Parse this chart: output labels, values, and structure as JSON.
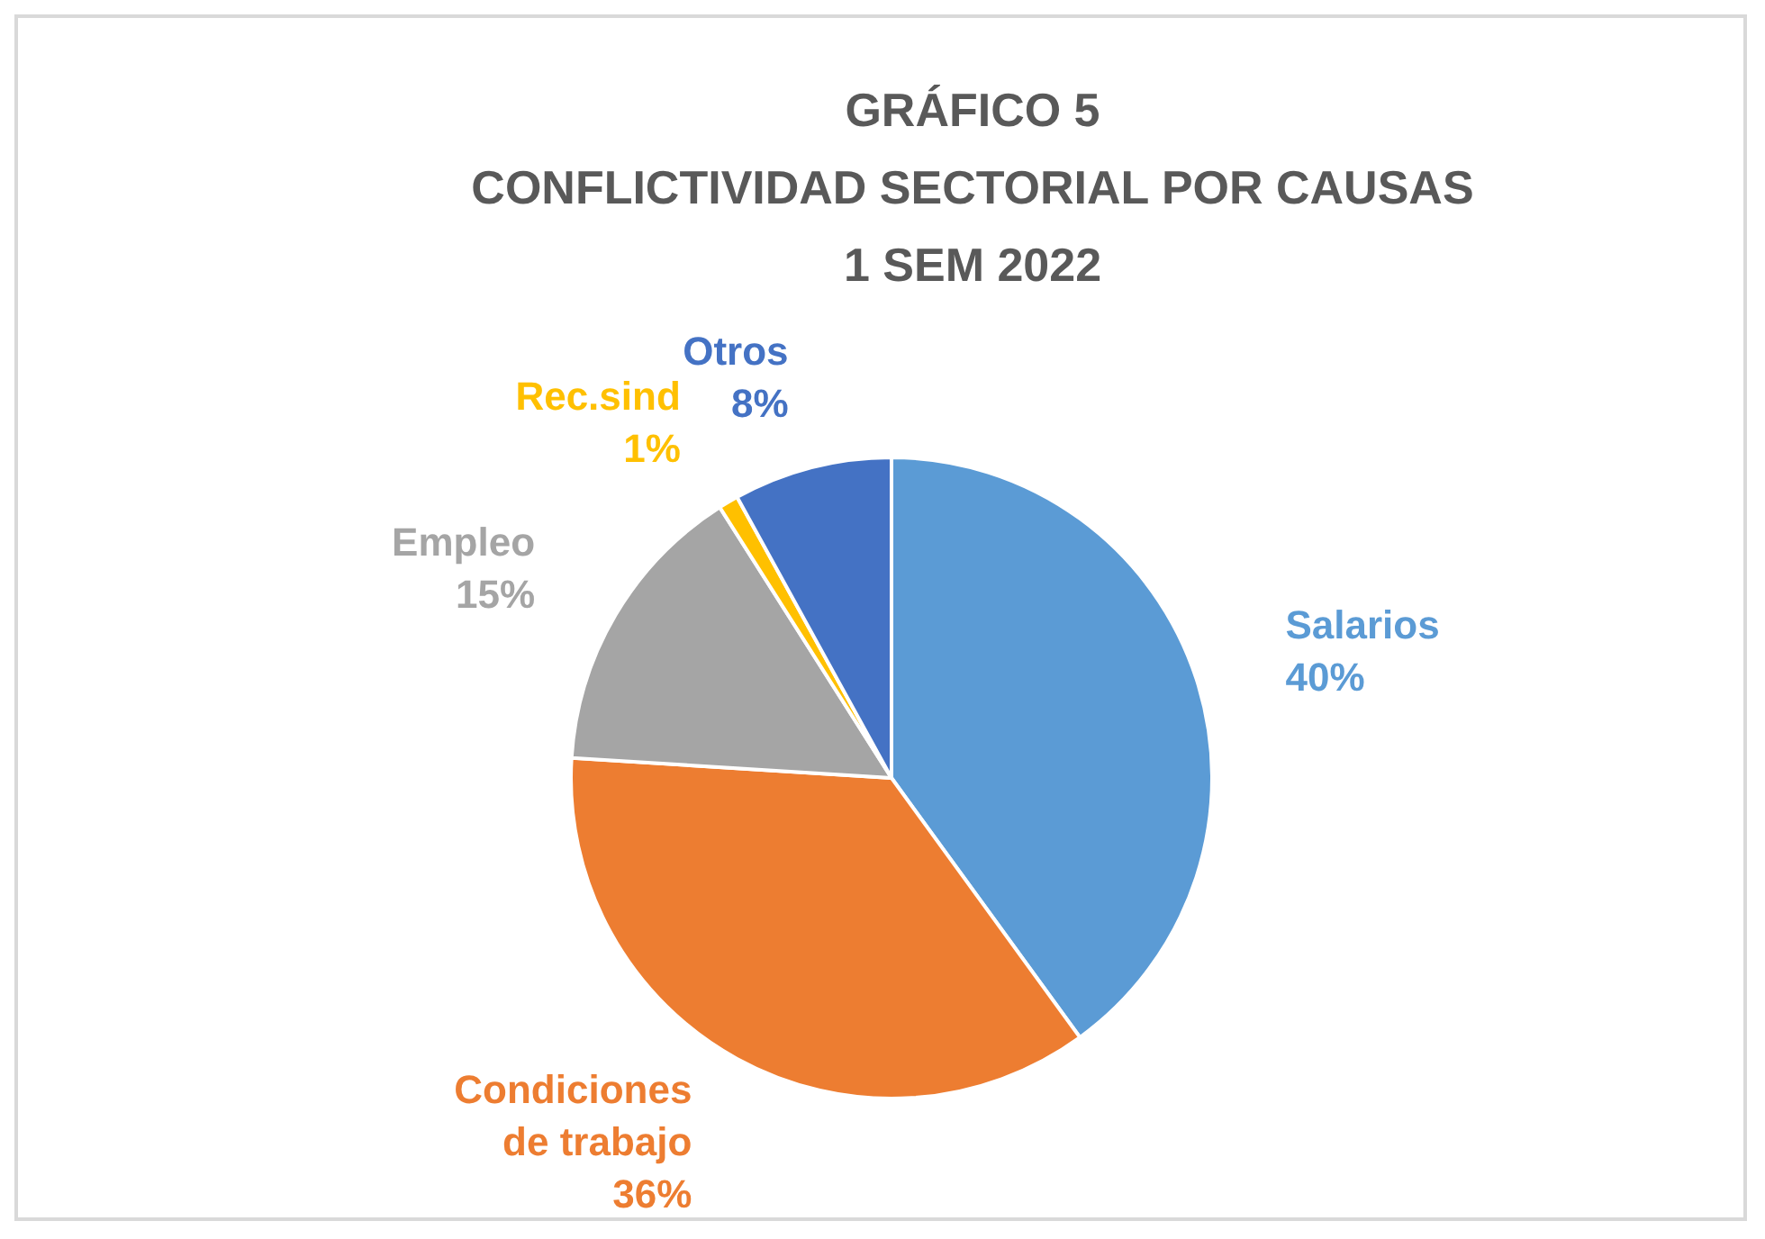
{
  "chart_data": {
    "type": "pie",
    "title": "GRÁFICO 5\nCONFLICTIVIDAD SECTORIAL POR CAUSAS\n1 SEM 2022",
    "categories": [
      "Salarios",
      "Condiciones de trabajo",
      "Empleo",
      "Rec.sind",
      "Otros"
    ],
    "values": [
      40,
      36,
      15,
      1,
      8
    ],
    "colors": [
      "#5b9bd5",
      "#ed7d31",
      "#a5a5a5",
      "#ffc000",
      "#4472c4"
    ],
    "value_labels": [
      "40%",
      "36%",
      "15%",
      "1%",
      "8%"
    ]
  }
}
